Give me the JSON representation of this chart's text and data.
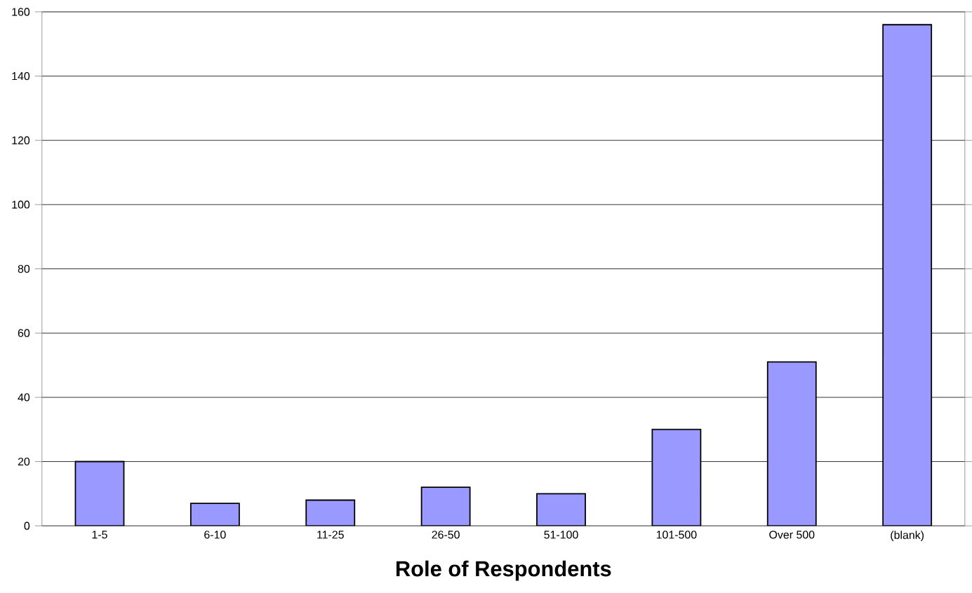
{
  "chart_data": {
    "type": "bar",
    "xlabel": "Role of Respondents",
    "categories": [
      "1-5",
      "6-10",
      "11-25",
      "26-50",
      "51-100",
      "101-500",
      "Over 500",
      "(blank)"
    ],
    "values": [
      20,
      7,
      8,
      12,
      10,
      30,
      51,
      156
    ],
    "color": "#9999ff",
    "ylim": [
      0,
      160
    ],
    "yticks": [
      0,
      20,
      40,
      60,
      80,
      100,
      120,
      140,
      160
    ],
    "grid": "y"
  }
}
